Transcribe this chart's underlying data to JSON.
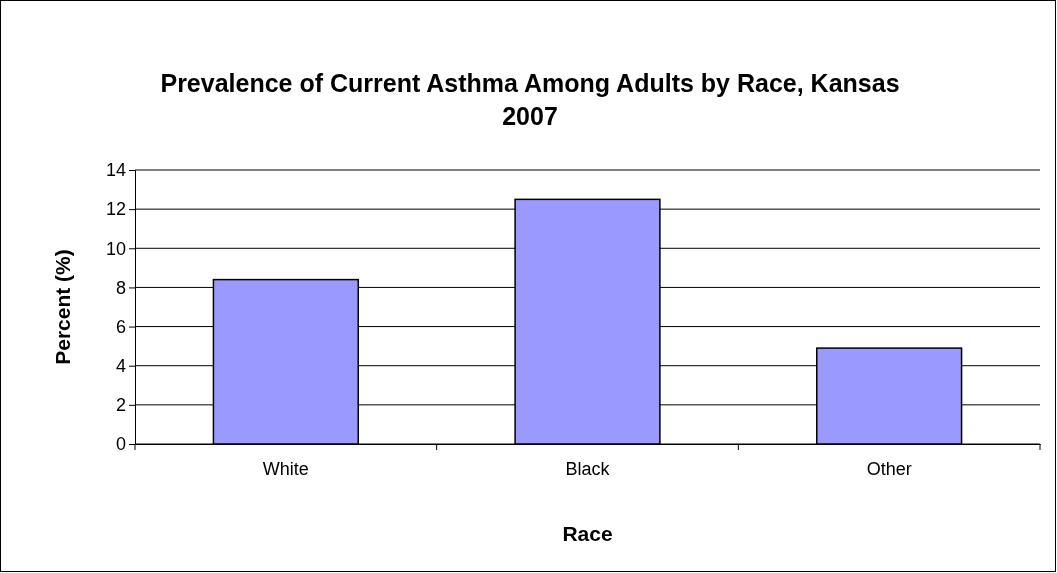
{
  "chart_data": {
    "type": "bar",
    "title": "Prevalence of Current Asthma Among Adults by Race, Kansas 2007",
    "xlabel": "Race",
    "ylabel": "Percent (%)",
    "categories": [
      "White",
      "Black",
      "Other"
    ],
    "values": [
      8.4,
      12.5,
      4.9
    ],
    "color": "#9999ff",
    "ylim": [
      0,
      14
    ],
    "yticks": [
      0,
      2,
      4,
      6,
      8,
      10,
      12,
      14
    ],
    "grid": "y"
  }
}
